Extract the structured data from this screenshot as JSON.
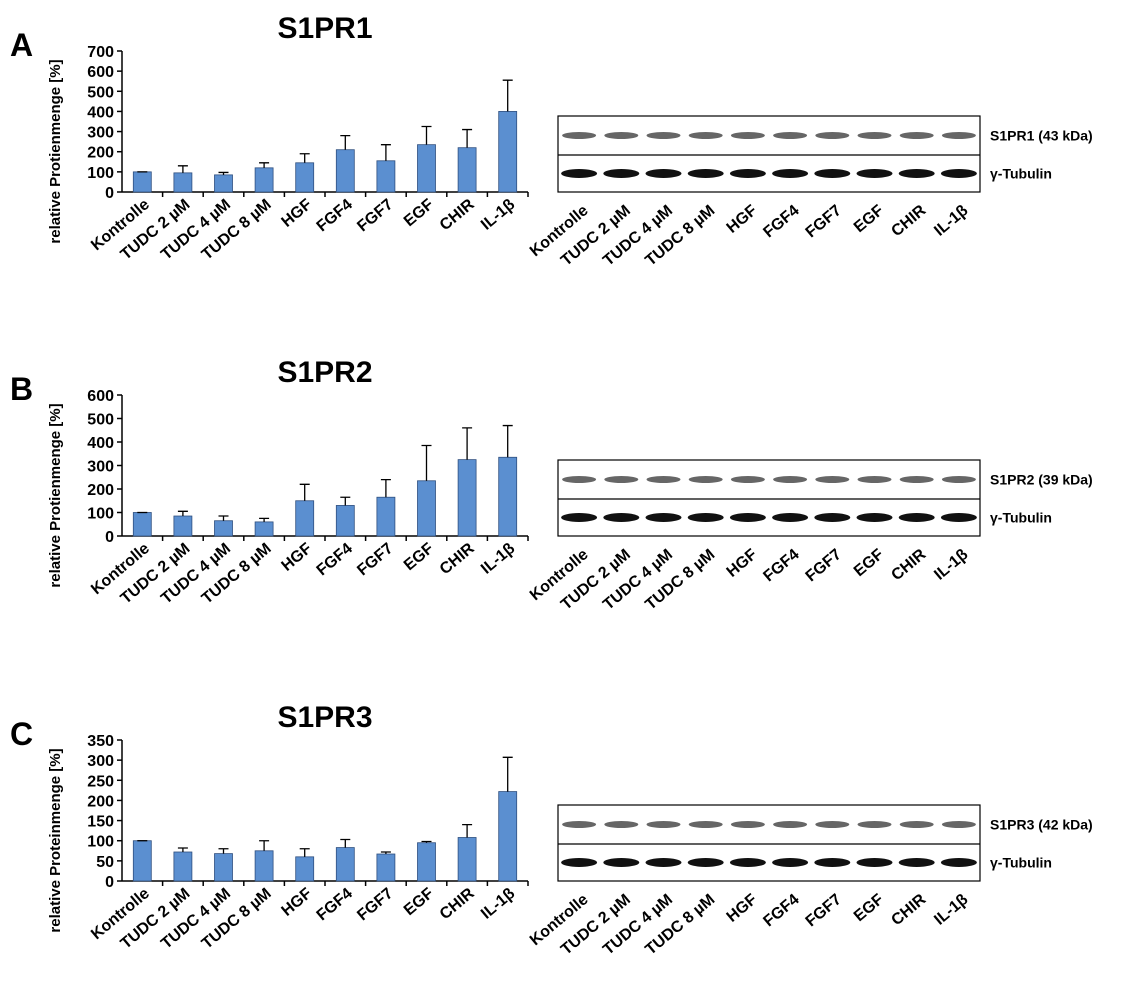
{
  "chart_data": [
    {
      "type": "bar",
      "panel": "A",
      "title": "S1PR1",
      "y_label": "relative Protienmenge [%]",
      "categories": [
        "Kontrolle",
        "TUDC 2 µM",
        "TUDC 4 µM",
        "TUDC 8 µM",
        "HGF",
        "FGF4",
        "FGF7",
        "EGF",
        "CHIR",
        "IL-1β"
      ],
      "series": [
        {
          "color": "#5b8fd0",
          "values": [
            100,
            95,
            85,
            120,
            145,
            210,
            155,
            235,
            220,
            400
          ],
          "errors": [
            0,
            35,
            12,
            25,
            45,
            70,
            80,
            90,
            90,
            155
          ]
        }
      ],
      "ylim": [
        0,
        700
      ],
      "yticks": [
        0,
        100,
        200,
        300,
        400,
        500,
        600,
        700
      ],
      "blot": {
        "labels": [
          "S1PR1 (43 kDa)",
          "γ-Tubulin"
        ]
      }
    },
    {
      "type": "bar",
      "panel": "B",
      "title": "S1PR2",
      "y_label": "relative Protienmenge [%]",
      "categories": [
        "Kontrolle",
        "TUDC 2 µM",
        "TUDC 4 µM",
        "TUDC 8 µM",
        "HGF",
        "FGF4",
        "FGF7",
        "EGF",
        "CHIR",
        "IL-1β"
      ],
      "series": [
        {
          "color": "#5b8fd0",
          "values": [
            100,
            85,
            65,
            60,
            150,
            130,
            165,
            235,
            325,
            335
          ],
          "errors": [
            0,
            20,
            20,
            15,
            70,
            35,
            75,
            150,
            135,
            135
          ]
        }
      ],
      "ylim": [
        0,
        600
      ],
      "yticks": [
        0,
        100,
        200,
        300,
        400,
        500,
        600
      ],
      "blot": {
        "labels": [
          "S1PR2 (39 kDa)",
          "γ-Tubulin"
        ]
      }
    },
    {
      "type": "bar",
      "panel": "C",
      "title": "S1PR3",
      "y_label": "relative Proteinmenge [%]",
      "categories": [
        "Kontrolle",
        "TUDC 2 µM",
        "TUDC 4 µM",
        "TUDC 8 µM",
        "HGF",
        "FGF4",
        "FGF7",
        "EGF",
        "CHIR",
        "IL-1β"
      ],
      "series": [
        {
          "color": "#5b8fd0",
          "values": [
            100,
            72,
            68,
            75,
            60,
            83,
            67,
            95,
            108,
            222
          ],
          "errors": [
            0,
            10,
            12,
            25,
            20,
            20,
            5,
            3,
            32,
            85
          ]
        }
      ],
      "ylim": [
        0,
        350
      ],
      "yticks": [
        0,
        50,
        100,
        150,
        200,
        250,
        300,
        350
      ],
      "blot": {
        "labels": [
          "S1PR3 (42 kDa)",
          "γ-Tubulin"
        ]
      }
    }
  ]
}
